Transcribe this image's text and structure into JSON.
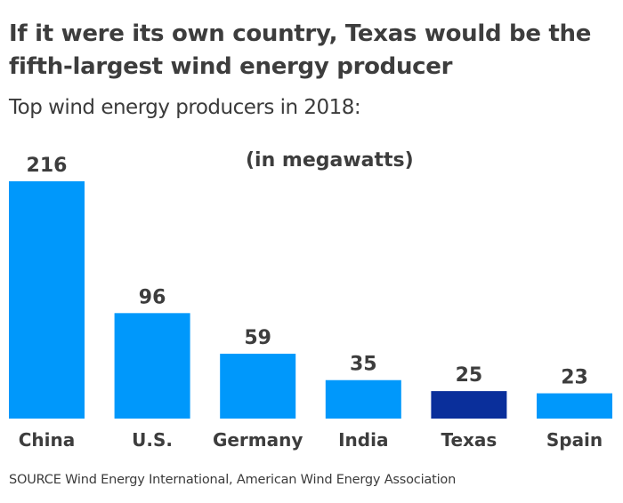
{
  "header": {
    "title": "If it were its own country, Texas would be the fifth-largest wind energy producer",
    "subtitle": "Top wind energy producers in 2018:"
  },
  "footer": {
    "source": "SOURCE Wind Energy International, American Wind Energy Association"
  },
  "chart_data": {
    "type": "bar",
    "title": "If it were its own country, Texas would be the fifth-largest wind energy producer",
    "subtitle": "Top wind energy producers in 2018:",
    "annotation": "(in megawatts)",
    "xlabel": "",
    "ylabel": "",
    "ylim": [
      0,
      216
    ],
    "grid": false,
    "categories": [
      "China",
      "U.S.",
      "Germany",
      "India",
      "Texas",
      "Spain"
    ],
    "values": [
      216,
      96,
      59,
      35,
      25,
      23
    ],
    "data_labels": [
      "216",
      "96",
      "59",
      "35",
      "25",
      "23"
    ],
    "colors": {
      "default": "#0098fb",
      "highlight": "#0a2f9b",
      "highlight_category": "Texas"
    }
  }
}
